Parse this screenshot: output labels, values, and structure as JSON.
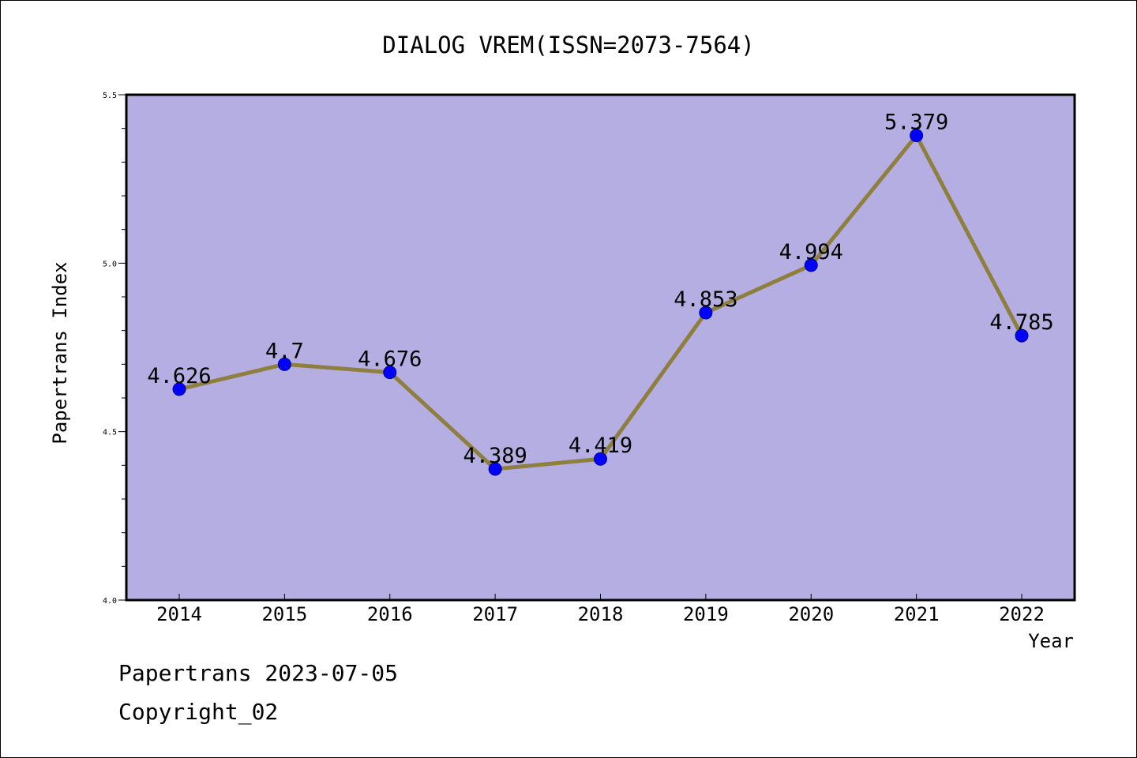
{
  "chart_data": {
    "type": "line",
    "title": "DIALOG VREM(ISSN=2073-7564)",
    "xlabel": "Year",
    "ylabel": "Papertrans Index",
    "categories": [
      "2014",
      "2015",
      "2016",
      "2017",
      "2018",
      "2019",
      "2020",
      "2021",
      "2022"
    ],
    "values": [
      4.626,
      4.7,
      4.676,
      4.389,
      4.419,
      4.853,
      4.994,
      5.379,
      4.785
    ],
    "data_labels": [
      "4.626",
      "4.7",
      "4.676",
      "4.389",
      "4.419",
      "4.853",
      "4.994",
      "5.379",
      "4.785"
    ],
    "ylim": [
      4.0,
      5.5
    ],
    "y_ticks": [
      "4.0",
      "4.5",
      "5.0",
      "5.5"
    ],
    "grid": false,
    "colors": {
      "plot_background": "#b5aee2",
      "line": "#8f7f3f",
      "marker": "#0000ff"
    }
  },
  "footer": {
    "line1": "Papertrans 2023-07-05",
    "line2": "Copyright_02"
  }
}
